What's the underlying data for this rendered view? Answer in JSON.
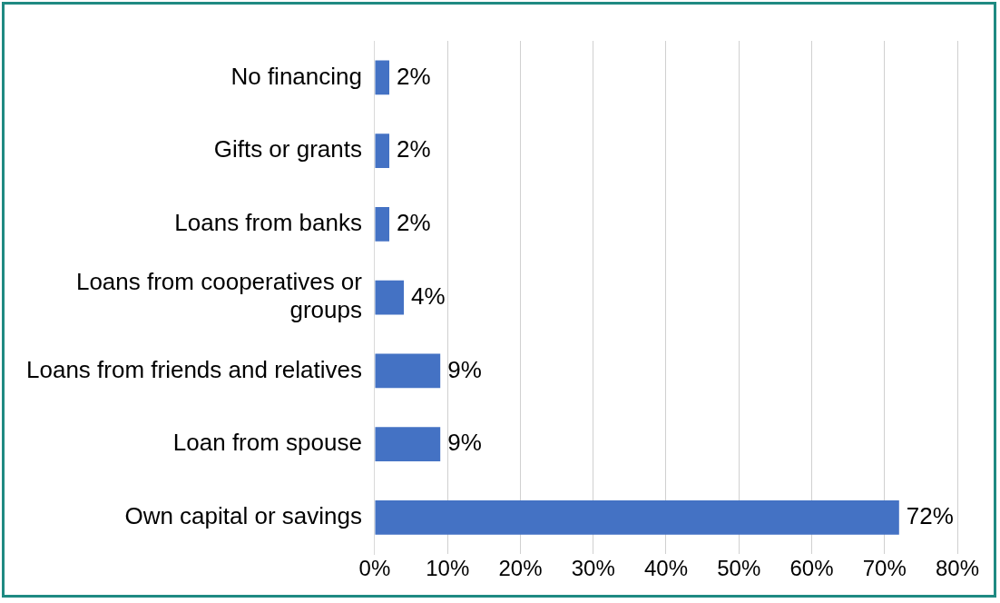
{
  "chart_data": {
    "type": "bar",
    "orientation": "horizontal",
    "categories": [
      "No financing",
      "Gifts or grants",
      "Loans from banks",
      "Loans from cooperatives or groups",
      "Loans from friends and relatives",
      "Loan from spouse",
      "Own capital or savings"
    ],
    "values": [
      2,
      2,
      2,
      4,
      9,
      9,
      72
    ],
    "value_labels": [
      "2%",
      "2%",
      "2%",
      "4%",
      "9%",
      "9%",
      "72%"
    ],
    "color": "#4472c4",
    "xlim": [
      0,
      80
    ],
    "xticks": [
      {
        "value": 0,
        "label": "0%"
      },
      {
        "value": 10,
        "label": "10%"
      },
      {
        "value": 20,
        "label": "20%"
      },
      {
        "value": 30,
        "label": "30%"
      },
      {
        "value": 40,
        "label": "40%"
      },
      {
        "value": 50,
        "label": "50%"
      },
      {
        "value": 60,
        "label": "60%"
      },
      {
        "value": 70,
        "label": "70%"
      },
      {
        "value": 80,
        "label": "80%"
      }
    ],
    "grid": "x"
  }
}
